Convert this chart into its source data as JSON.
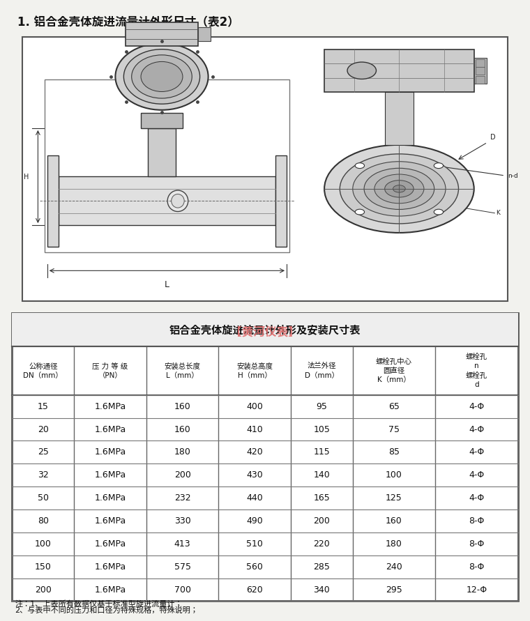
{
  "title": "1. 铝合金壳体旋进流量计外形尺寸（表2）",
  "table_title": "铝合金壳体旋进流量计外形及安装尺寸表",
  "watermark": "【黄河仪表】",
  "col_headers": [
    "公称通径\nDN（mm）",
    "压 力 等 级\n（PN）",
    "安装总长度\nL（mm）",
    "安装总高度\nH（mm）",
    "法兰外径\nD（mm）",
    "螺栓孔中心\n圆直径\nK（mm）",
    "螺栓孔\nn\n螺栓孔\nd"
  ],
  "rows": [
    [
      "15",
      "1.6MPa",
      "160",
      "400",
      "95",
      "65",
      "4-Φ"
    ],
    [
      "20",
      "1.6MPa",
      "160",
      "410",
      "105",
      "75",
      "4-Φ"
    ],
    [
      "25",
      "1.6MPa",
      "180",
      "420",
      "115",
      "85",
      "4-Φ"
    ],
    [
      "32",
      "1.6MPa",
      "200",
      "430",
      "140",
      "100",
      "4-Φ"
    ],
    [
      "50",
      "1.6MPa",
      "232",
      "440",
      "165",
      "125",
      "4-Φ"
    ],
    [
      "80",
      "1.6MPa",
      "330",
      "490",
      "200",
      "160",
      "8-Φ"
    ],
    [
      "100",
      "1.6MPa",
      "413",
      "510",
      "220",
      "180",
      "8-Φ"
    ],
    [
      "150",
      "1.6MPa",
      "575",
      "560",
      "285",
      "240",
      "8-Φ"
    ],
    [
      "200",
      "1.6MPa",
      "700",
      "620",
      "340",
      "295",
      "12-Φ"
    ]
  ],
  "footnote1": "注：1、上表所有数据仅基于标准型旋进流量计；",
  "footnote2": "2、与表中不同的压力和口径为特殊规格，特殊说明；",
  "bg_color": "#f2f2ee",
  "table_bg": "#ffffff",
  "header_bg": "#f0f0f0",
  "border_color": "#333333",
  "text_color": "#111111",
  "title_color": "#111111",
  "watermark_color": "#e07070"
}
